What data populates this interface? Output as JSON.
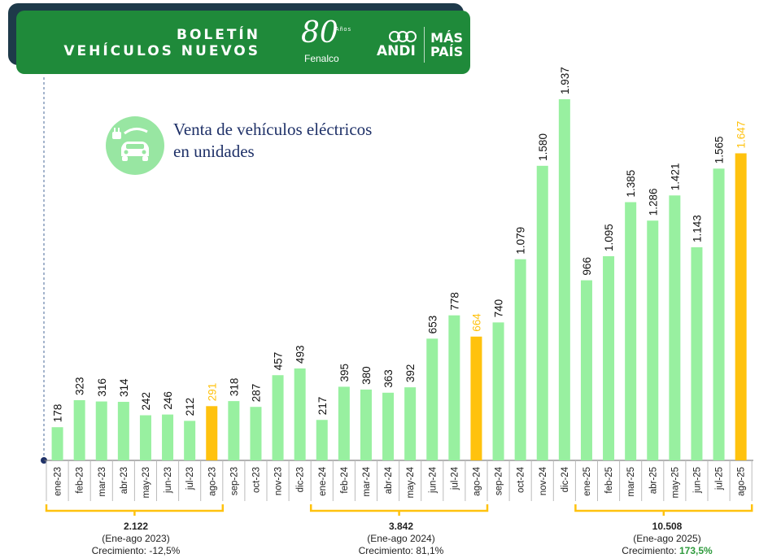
{
  "header": {
    "title_line1": "BOLETÍN",
    "title_line2": "VEHÍCULOS NUEVOS",
    "logos": {
      "anniversary": "80",
      "anniversary_small": "Años",
      "fenalco": "Fenalco",
      "andi": "ANDI",
      "mas_line1": "MÁS",
      "mas_line2": "PAÍS"
    }
  },
  "subtitle": {
    "line1": "Venta de vehículos eléctricos",
    "line2": "en unidades",
    "icon": "electric-car-icon"
  },
  "colors": {
    "banner": "#1f8a3a",
    "bar": "#98f0a0",
    "highlight": "#ffc20e",
    "value_label": "#111111",
    "positive": "#2e9a3c"
  },
  "chart_data": {
    "type": "bar",
    "title": "Venta de vehículos eléctricos en unidades",
    "xlabel": "",
    "ylabel": "",
    "ylim": [
      0,
      2000
    ],
    "grid": false,
    "categories": [
      "ene-23",
      "feb-23",
      "mar-23",
      "abr-23",
      "may-23",
      "jun-23",
      "jul-23",
      "ago-23",
      "sep-23",
      "oct-23",
      "nov-23",
      "dic-23",
      "ene-24",
      "feb-24",
      "mar-24",
      "abr-24",
      "may-24",
      "jun-24",
      "jul-24",
      "ago-24",
      "sep-24",
      "oct-24",
      "nov-24",
      "dic-24",
      "ene-25",
      "feb-25",
      "mar-25",
      "abr-25",
      "may-25",
      "jun-25",
      "jul-25",
      "ago-25"
    ],
    "values": [
      178,
      323,
      316,
      314,
      242,
      246,
      212,
      291,
      318,
      287,
      457,
      493,
      217,
      395,
      380,
      363,
      392,
      653,
      778,
      664,
      740,
      1079,
      1580,
      1937,
      966,
      1095,
      1385,
      1286,
      1421,
      1143,
      1565,
      1647
    ],
    "value_labels": [
      "178",
      "323",
      "316",
      "314",
      "242",
      "246",
      "212",
      "291",
      "318",
      "287",
      "457",
      "493",
      "217",
      "395",
      "380",
      "363",
      "392",
      "653",
      "778",
      "664",
      "740",
      "1.079",
      "1.580",
      "1.937",
      "966",
      "1.095",
      "1.385",
      "1.286",
      "1.421",
      "1.143",
      "1.565",
      "1.647"
    ],
    "highlighted": [
      "ago-23",
      "ago-24",
      "ago-25"
    ],
    "summaries": [
      {
        "total": "2.122",
        "period": "(Ene-ago 2023)",
        "growth_label": "Crecimiento: ",
        "growth": "-12,5%",
        "positive": false,
        "from": 0,
        "to": 7
      },
      {
        "total": "3.842",
        "period": "(Ene-ago 2024)",
        "growth_label": "Crecimiento: ",
        "growth": "81,1%",
        "positive": false,
        "from": 12,
        "to": 19
      },
      {
        "total": "10.508",
        "period": "(Ene-ago 2025)",
        "growth_label": "Crecimiento: ",
        "growth": "173,5%",
        "positive": true,
        "from": 24,
        "to": 31
      }
    ]
  }
}
